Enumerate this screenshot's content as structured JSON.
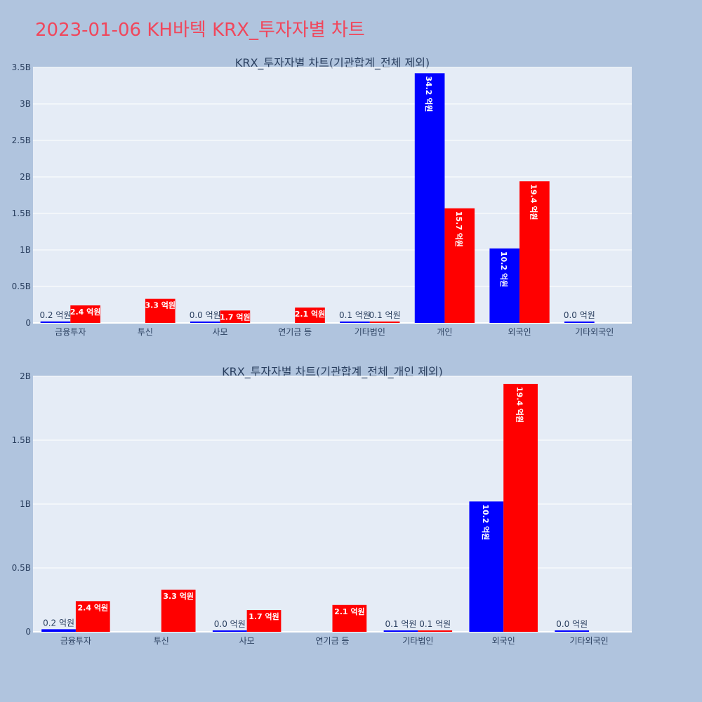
{
  "page": {
    "title": "2023-01-06 KH바텍 KRX_투자자별 차트"
  },
  "colors": {
    "buy": "#0000ff",
    "sell": "#ff0000",
    "plot_bg": "#e5ecf6",
    "grid": "#ffffff",
    "page_bg": "#b0c4de"
  },
  "chart_data": [
    {
      "type": "bar",
      "title": "KRX_투자자별 차트(기관합계_전체 제외)",
      "categories": [
        "금융투자",
        "투신",
        "사모",
        "연기금 등",
        "기타법인",
        "개인",
        "외국인",
        "기타외국인"
      ],
      "series": [
        {
          "values": [
            0.02,
            null,
            0.0,
            null,
            0.01,
            3.42,
            1.02,
            0.0
          ],
          "labels": [
            "0.2 억원",
            "",
            "0.0 억원",
            "",
            "0.1 억원",
            "34.2 억원",
            "10.2 억원",
            "0.0 억원"
          ]
        },
        {
          "values": [
            0.24,
            0.33,
            0.17,
            0.21,
            0.01,
            1.57,
            1.94,
            null
          ],
          "labels": [
            "2.4 억원",
            "3.3 억원",
            "1.7 억원",
            "2.1 억원",
            "0.1 억원",
            "15.7 억원",
            "19.4 억원",
            ""
          ]
        }
      ],
      "yticks": [
        "0",
        "0.5B",
        "1B",
        "1.5B",
        "2B",
        "2.5B",
        "3B",
        "3.5B"
      ],
      "ylim": [
        0,
        3.5
      ],
      "grid": true,
      "legend": "none"
    },
    {
      "type": "bar",
      "title": "KRX_투자자별 차트(기관합계_전체_개인 제외)",
      "categories": [
        "금융투자",
        "투신",
        "사모",
        "연기금 등",
        "기타법인",
        "외국인",
        "기타외국인"
      ],
      "series": [
        {
          "values": [
            0.02,
            null,
            0.0,
            null,
            0.01,
            1.02,
            0.0
          ],
          "labels": [
            "0.2 억원",
            "",
            "0.0 억원",
            "",
            "0.1 억원",
            "10.2 억원",
            "0.0 억원"
          ]
        },
        {
          "values": [
            0.24,
            0.33,
            0.17,
            0.21,
            0.01,
            1.94,
            null
          ],
          "labels": [
            "2.4 억원",
            "3.3 억원",
            "1.7 억원",
            "2.1 억원",
            "0.1 억원",
            "19.4 억원",
            ""
          ]
        }
      ],
      "yticks": [
        "0",
        "0.5B",
        "1B",
        "1.5B",
        "2B"
      ],
      "ylim": [
        0,
        2.0
      ],
      "grid": true,
      "legend": "none"
    }
  ]
}
